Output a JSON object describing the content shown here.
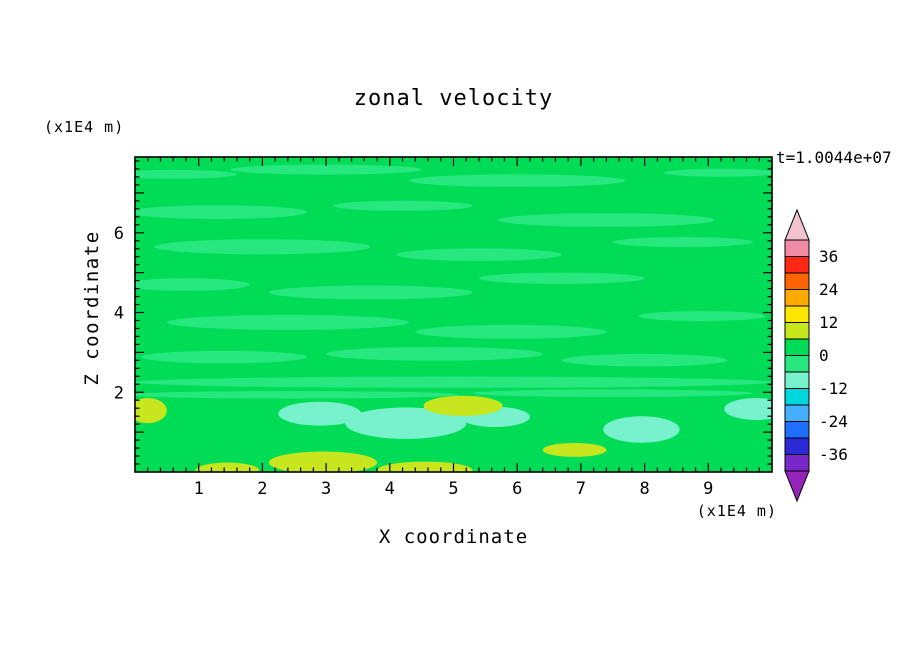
{
  "figure": {
    "title": "zonal velocity",
    "timestamp": "t=1.0044e+07",
    "x_axis": {
      "label": "X coordinate",
      "unit": "(x1E4 m)"
    },
    "y_axis": {
      "label": "Z coordinate",
      "unit": "(x1E4 m)"
    }
  },
  "chart_data": {
    "type": "heatmap",
    "title": "zonal velocity",
    "xlabel": "X coordinate",
    "ylabel": "Z coordinate",
    "x_unit": "(x1E4 m)",
    "y_unit": "(x1E4 m)",
    "annotation": "t=1.0044e+07",
    "xlim": [
      0,
      10
    ],
    "ylim": [
      0,
      7.9
    ],
    "x_major_ticks": [
      1,
      2,
      3,
      4,
      5,
      6,
      7,
      8,
      9
    ],
    "x_labeled_ticks": [
      1,
      2,
      3,
      4,
      5,
      6,
      7,
      8,
      9
    ],
    "y_major_ticks": [
      1,
      2,
      3,
      4,
      5,
      6,
      7
    ],
    "y_labeled_ticks": [
      2,
      4,
      6
    ],
    "minor_tick_step": 0.2,
    "grid": false,
    "legend": "colorbar-right",
    "colorbar": {
      "step": 6,
      "levels": [
        -42,
        -36,
        -30,
        -24,
        -18,
        -12,
        -6,
        0,
        6,
        12,
        18,
        24,
        30,
        36,
        42
      ],
      "labels": [
        36,
        24,
        12,
        0,
        -12,
        -24,
        -36
      ],
      "colors_low_to_high": [
        "#7828C8",
        "#2A2AD7",
        "#1E6EFF",
        "#46AFFF",
        "#00D7DC",
        "#78F2CC",
        "#27E87E",
        "#00DC55",
        "#C8E61E",
        "#FFE600",
        "#FFAA00",
        "#FF6400",
        "#FF2814",
        "#F08CA5"
      ],
      "over_color": "#F2C3CF",
      "under_color": "#9623B9"
    },
    "field": {
      "background_value": 3,
      "patches_frac": [
        {
          "fx": 0.06,
          "fy": 0.055,
          "frx": 0.1,
          "fry": 0.014,
          "value": -3
        },
        {
          "fx": 0.3,
          "fy": 0.04,
          "frx": 0.15,
          "fry": 0.016,
          "value": -3
        },
        {
          "fx": 0.6,
          "fy": 0.075,
          "frx": 0.17,
          "fry": 0.02,
          "value": -3
        },
        {
          "fx": 0.92,
          "fy": 0.05,
          "frx": 0.09,
          "fry": 0.013,
          "value": -3
        },
        {
          "fx": 0.13,
          "fy": 0.175,
          "frx": 0.14,
          "fry": 0.022,
          "value": -3
        },
        {
          "fx": 0.42,
          "fy": 0.155,
          "frx": 0.11,
          "fry": 0.016,
          "value": -3
        },
        {
          "fx": 0.74,
          "fy": 0.2,
          "frx": 0.17,
          "fry": 0.022,
          "value": -3
        },
        {
          "fx": 0.2,
          "fy": 0.285,
          "frx": 0.17,
          "fry": 0.024,
          "value": -3
        },
        {
          "fx": 0.54,
          "fy": 0.31,
          "frx": 0.13,
          "fry": 0.02,
          "value": -3
        },
        {
          "fx": 0.86,
          "fy": 0.27,
          "frx": 0.11,
          "fry": 0.016,
          "value": -3
        },
        {
          "fx": 0.08,
          "fy": 0.405,
          "frx": 0.1,
          "fry": 0.02,
          "value": -3
        },
        {
          "fx": 0.37,
          "fy": 0.43,
          "frx": 0.16,
          "fry": 0.022,
          "value": -3
        },
        {
          "fx": 0.67,
          "fy": 0.385,
          "frx": 0.13,
          "fry": 0.018,
          "value": -3
        },
        {
          "fx": 0.24,
          "fy": 0.525,
          "frx": 0.19,
          "fry": 0.024,
          "value": -3
        },
        {
          "fx": 0.59,
          "fy": 0.555,
          "frx": 0.15,
          "fry": 0.022,
          "value": -3
        },
        {
          "fx": 0.89,
          "fy": 0.505,
          "frx": 0.1,
          "fry": 0.016,
          "value": -3
        },
        {
          "fx": 0.14,
          "fy": 0.635,
          "frx": 0.13,
          "fry": 0.02,
          "value": -3
        },
        {
          "fx": 0.47,
          "fy": 0.625,
          "frx": 0.17,
          "fry": 0.022,
          "value": -3
        },
        {
          "fx": 0.8,
          "fy": 0.645,
          "frx": 0.13,
          "fry": 0.02,
          "value": -3
        },
        {
          "fx": 0.5,
          "fy": 0.715,
          "frx": 0.5,
          "fry": 0.018,
          "value": -3
        },
        {
          "fx": 0.25,
          "fy": 0.755,
          "frx": 0.26,
          "fry": 0.012,
          "value": -3
        },
        {
          "fx": 0.75,
          "fy": 0.75,
          "frx": 0.22,
          "fry": 0.012,
          "value": -3
        },
        {
          "fx": 0.29,
          "fy": 0.815,
          "frx": 0.065,
          "fry": 0.038,
          "value": -9
        },
        {
          "fx": 0.425,
          "fy": 0.845,
          "frx": 0.095,
          "fry": 0.05,
          "value": -9
        },
        {
          "fx": 0.565,
          "fy": 0.825,
          "frx": 0.055,
          "fry": 0.032,
          "value": -9
        },
        {
          "fx": 0.795,
          "fy": 0.865,
          "frx": 0.06,
          "fry": 0.042,
          "value": -9
        },
        {
          "fx": 0.975,
          "fy": 0.8,
          "frx": 0.05,
          "fry": 0.035,
          "value": -9
        },
        {
          "fx": 0.02,
          "fy": 0.805,
          "frx": 0.03,
          "fry": 0.04,
          "value": 9
        },
        {
          "fx": 0.515,
          "fy": 0.79,
          "frx": 0.062,
          "fry": 0.032,
          "value": 9
        },
        {
          "fx": 0.295,
          "fy": 0.97,
          "frx": 0.085,
          "fry": 0.035,
          "value": 9
        },
        {
          "fx": 0.455,
          "fy": 0.995,
          "frx": 0.075,
          "fry": 0.028,
          "value": 9
        },
        {
          "fx": 0.69,
          "fy": 0.93,
          "frx": 0.05,
          "fry": 0.022,
          "value": 9
        },
        {
          "fx": 0.145,
          "fy": 0.995,
          "frx": 0.05,
          "fry": 0.025,
          "value": 9
        }
      ]
    }
  }
}
